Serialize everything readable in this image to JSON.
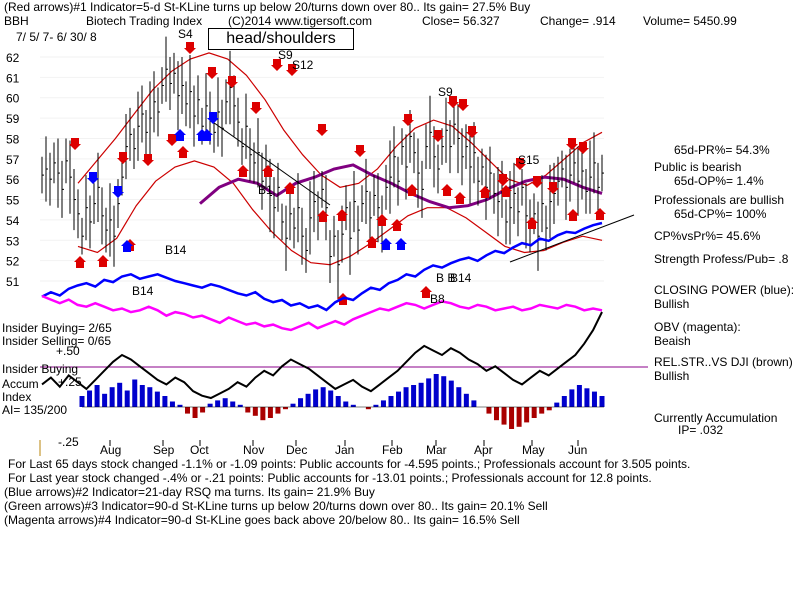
{
  "header": {
    "line1": "(Red arrows)#1 Indicator=5-d St-KLine turns up below 20/turns down over 80..  Its gain= 27.5% Buy",
    "ticker": "BBH",
    "name": "Biotech Trading Index",
    "copyright": "(C)2014 www.tigersoft.com",
    "close": "Close=  56.327",
    "change": "Change= .914",
    "volume": "Volume= 5450.99",
    "daterange": "7/ 5/ 7- 6/ 30/ 8"
  },
  "annotations": {
    "headshoulders": "head/shoulders",
    "s4": "S4",
    "s9a": "S9",
    "s12": "S12",
    "s9b": "S9",
    "s15": "S15",
    "b1": "B1",
    "b14a": "B14",
    "b14b": "B14",
    "b14c": "B14",
    "bb": "B B",
    "b8": "B8"
  },
  "left_labels": {
    "insider_buying": "Insider Buying=  2/65",
    "insider_selling": "Insider Selling= 0/65",
    "plus50": "+.50",
    "insider_buying2": "Insider Buying",
    "accum": "Accum",
    "plus25": "+.25",
    "index": "Index",
    "ai": "AI= 135/200",
    "minus25": "-.25"
  },
  "right_panel": {
    "pr": "65d-PR%= 54.3%",
    "public": "Public is bearish",
    "op": "65d-OP%= 1.4%",
    "pros": "Professionals are bullish",
    "cp": "65d-CP%= 100%",
    "cpvspr": "CP%vsPr%=  45.6%",
    "strength": "Strength Profess/Pub= .8",
    "closing_power": "CLOSING POWER (blue):",
    "closing_power_val": "Bullish",
    "obv": "OBV (magenta):",
    "obv_val": "Beaish",
    "relstr": "REL.STR..VS DJI (brown)",
    "relstr_val": "Bullish",
    "curr_acc": "Currently Accumulation",
    "ip": "IP= .032"
  },
  "footer": {
    "l1": "For Last 65 days stock changed -1.1% or -1.09 points:  Public accounts for -4.595 points.;  Professionals account for  3.505 points.",
    "l2": "For Last year stock changed -.4% or -.21 points:  Public accounts for -13.01 points.;  Professionals account for  12.8 points.",
    "l3": "(Blue arrows)#2 Indicator=21-day RSQ ma turns.  Its gain= 21.9% Buy",
    "l4": "(Green arrows)#3 Indicator=90-d St-KLine turns up below 20/turns down over 80..  Its gain= 20.1% Sell",
    "l5": "(Magenta arrows)#4 Indicator=90-d St-KLine goes back above 20/below 80..  Its gain= 16.5% Sell"
  },
  "colors": {
    "price": "#000000",
    "ma": "#800080",
    "band": "#cc0000",
    "closing_power": "#0000ff",
    "obv": "#ff00ff",
    "accum_pos": "#0000cc",
    "accum_neg": "#aa0000",
    "rel_str": "#000000",
    "arrow_red": "#dd0000",
    "arrow_blue": "#0000ff",
    "ref_line": "#8b008b"
  },
  "chart_data": {
    "type": "line",
    "ylim": [
      50.5,
      62.5
    ],
    "yticks": [
      51,
      52,
      53,
      54,
      55,
      56,
      57,
      58,
      59,
      60,
      61,
      62
    ],
    "months": [
      "Aug",
      "Sep",
      "Oct",
      "Nov",
      "Dec",
      "Jan",
      "Feb",
      "Mar",
      "Apr",
      "May",
      "Jun"
    ],
    "price_close": [
      56.2,
      56.5,
      56.0,
      56.8,
      56.3,
      55.5,
      56.9,
      56.1,
      55.0,
      54.3,
      53.2,
      54.6,
      53.9,
      54.8,
      55.6,
      54.2,
      53.5,
      54.0,
      53.2,
      54.8,
      56.1,
      57.6,
      58.2,
      57.5,
      58.6,
      59.2,
      58.3,
      59.0,
      59.8,
      59.3,
      60.6,
      61.4,
      60.7,
      61.2,
      60.1,
      60.6,
      59.7,
      60.3,
      59.1,
      59.9,
      58.6,
      59.6,
      59.0,
      58.3,
      59.3,
      58.5,
      59.8,
      60.5,
      59.6,
      58.8,
      57.6,
      58.6,
      57.2,
      56.8,
      57.3,
      55.9,
      56.6,
      55.2,
      54.6,
      55.6,
      53.9,
      53.1,
      54.3,
      53.6,
      54.6,
      53.2,
      52.5,
      54.1,
      54.9,
      54.2,
      55.5,
      54.6,
      52.2,
      53.2,
      51.8,
      53.3,
      54.6,
      53.1,
      54.9,
      53.5,
      54.8,
      55.4,
      54.1,
      55.2,
      54.6,
      53.8,
      55.6,
      56.1,
      57.1,
      55.9,
      57.6,
      56.6,
      58.1,
      57.3,
      56.3,
      55.5,
      57.6,
      58.3,
      57.1,
      56.5,
      57.6,
      58.4,
      57.6,
      58.7,
      58.0,
      57.1,
      57.6,
      56.6,
      57.3,
      55.9,
      56.6,
      55.6,
      56.3,
      55.3,
      54.9,
      55.5,
      53.9,
      54.6,
      55.3,
      54.4,
      55.6,
      54.2,
      53.7,
      54.3,
      53.2,
      54.8,
      53.6,
      54.9,
      55.3,
      55.9,
      56.5,
      55.6,
      56.2,
      56.8,
      55.9,
      56.4,
      55.4,
      56.1,
      56.8,
      55.6,
      56.3
    ],
    "ma_line": [
      54.8,
      55.6,
      56.0,
      55.8,
      55.2,
      55.8,
      56.1,
      56.5,
      56.7,
      56.2,
      55.8,
      55.3,
      54.9,
      54.6,
      54.7,
      55.0,
      55.5,
      55.9,
      56.1,
      56.0,
      55.6,
      55.3
    ],
    "upper_band": [
      55.8,
      56.9,
      58.0,
      59.2,
      60.4,
      61.3,
      61.9,
      62.2,
      61.9,
      61.1,
      59.9,
      58.4,
      57.2,
      56.2,
      55.6,
      55.8,
      56.5,
      57.6,
      58.5,
      58.9,
      58.6,
      57.8,
      56.9,
      56.0,
      55.7,
      56.2,
      57.0,
      57.8,
      58.3
    ],
    "lower_band": [
      52.7,
      52.4,
      53.1,
      54.7,
      55.9,
      56.6,
      56.9,
      56.6,
      55.8,
      54.5,
      53.4,
      52.5,
      51.9,
      51.8,
      52.2,
      52.8,
      53.5,
      54.2,
      54.6,
      54.6,
      54.1,
      53.4,
      52.7,
      52.4,
      52.5,
      52.9,
      53.2,
      53.0
    ],
    "closing_power_blue": [
      60,
      64,
      61,
      67,
      70,
      72,
      69,
      75,
      73,
      78,
      80,
      76,
      78,
      80,
      77,
      74,
      72,
      70,
      68,
      71,
      69,
      66,
      63,
      61,
      64,
      58,
      55,
      57,
      52,
      54,
      50,
      52,
      48,
      55,
      59,
      57,
      63,
      68,
      66,
      72,
      75,
      80,
      78,
      84,
      88,
      86,
      90,
      93,
      95,
      92,
      97,
      101,
      99,
      104,
      108,
      106,
      112,
      110,
      115,
      118,
      117,
      121,
      124,
      126
    ],
    "obv_magenta": [
      48,
      46,
      44,
      46,
      43,
      42,
      44,
      42,
      40,
      41,
      39,
      40,
      42,
      40,
      37,
      39,
      38,
      36,
      37,
      35,
      33,
      36,
      34,
      32,
      33,
      31,
      32,
      30,
      29,
      31,
      33,
      30,
      32,
      34,
      32,
      35,
      37,
      39,
      41,
      40,
      42,
      44,
      43,
      41,
      43,
      45,
      44,
      42,
      41,
      43,
      42,
      40,
      41,
      42,
      40,
      41,
      43,
      42,
      41,
      43,
      42,
      40,
      41,
      40
    ],
    "rel_str_black": [
      60,
      63,
      59,
      64,
      61,
      58,
      62,
      66,
      70,
      73,
      71,
      68,
      65,
      62,
      60,
      63,
      61,
      57,
      55,
      54,
      56,
      58,
      61,
      59,
      63,
      66,
      64,
      68,
      71,
      69,
      67,
      64,
      61,
      58,
      60,
      62,
      59,
      57,
      60,
      63,
      66,
      70,
      74,
      77,
      75,
      73,
      76,
      74,
      71,
      69,
      66,
      68,
      65,
      62,
      60,
      63,
      66,
      64,
      67,
      70,
      73,
      78,
      84,
      92
    ],
    "accum_index": [
      0.1,
      0.15,
      0.2,
      0.12,
      0.18,
      0.22,
      0.15,
      0.25,
      0.2,
      0.18,
      0.14,
      0.1,
      0.05,
      0.02,
      -0.06,
      -0.1,
      -0.05,
      0.03,
      0.06,
      0.08,
      0.05,
      0.02,
      -0.05,
      -0.08,
      -0.12,
      -0.1,
      -0.06,
      -0.02,
      0.03,
      0.08,
      0.12,
      0.16,
      0.18,
      0.15,
      0.1,
      0.05,
      0.02,
      0.0,
      -0.02,
      0.02,
      0.06,
      0.1,
      0.14,
      0.18,
      0.2,
      0.22,
      0.26,
      0.3,
      0.28,
      0.24,
      0.18,
      0.12,
      0.06,
      0.0,
      -0.06,
      -0.12,
      -0.16,
      -0.2,
      -0.18,
      -0.14,
      -0.1,
      -0.06,
      -0.03,
      0.04,
      0.1,
      0.16,
      0.2,
      0.17,
      0.14,
      0.1
    ]
  }
}
